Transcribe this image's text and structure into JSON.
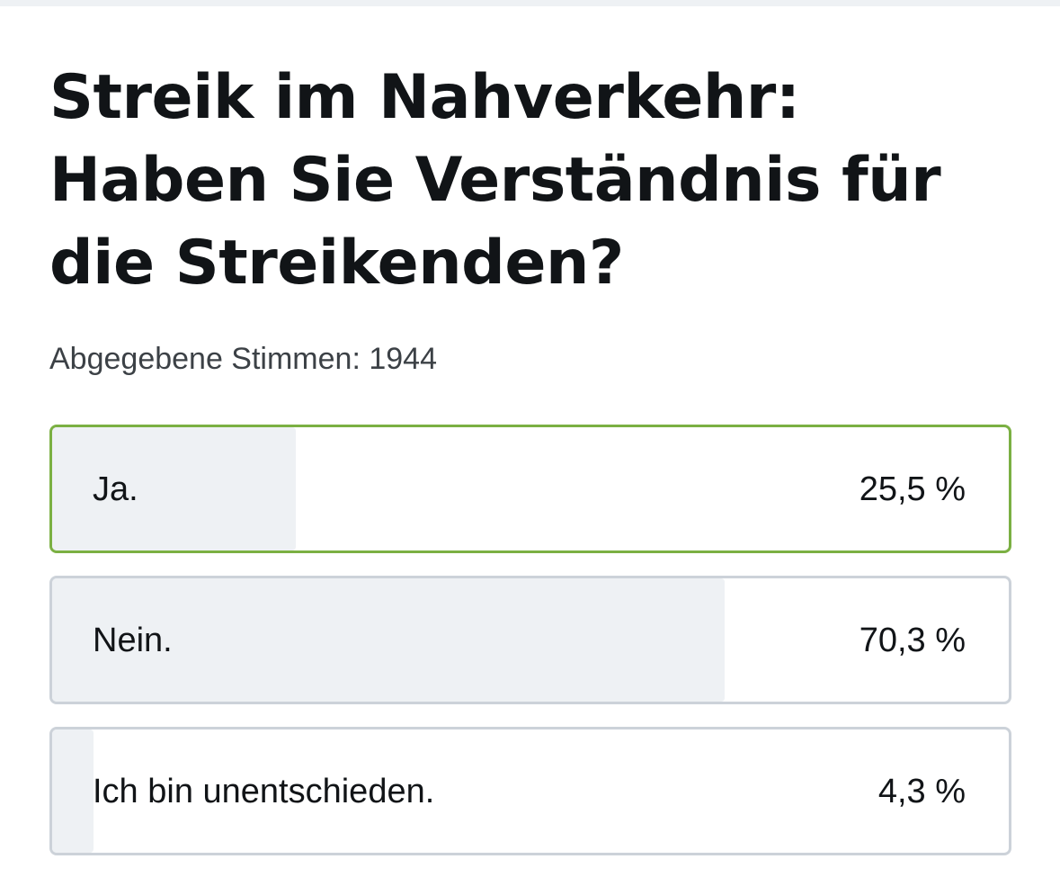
{
  "poll": {
    "title": "Streik im Nahverkehr: Haben Sie Verständnis für die Streikenden?",
    "vote_count_text": "Abgegebene Stimmen: 1944",
    "options": [
      {
        "label": "Ja.",
        "percent_text": "25,5 %",
        "percent": 25.5,
        "selected": true
      },
      {
        "label": "Nein.",
        "percent_text": "70,3 %",
        "percent": 70.3,
        "selected": false
      },
      {
        "label": "Ich bin unentschieden.",
        "percent_text": "4,3 %",
        "percent": 4.3,
        "selected": false
      }
    ]
  },
  "colors": {
    "selected_border": "#7bb043",
    "border": "#ccd2d9",
    "bar_fill": "#eef1f4",
    "text": "#111417"
  }
}
